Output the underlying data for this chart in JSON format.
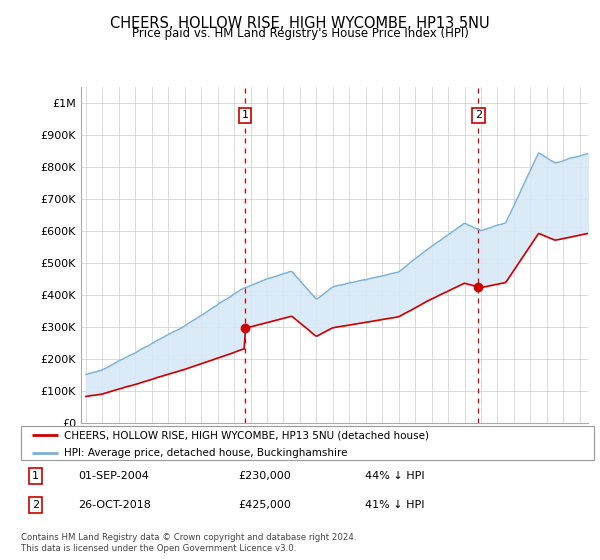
{
  "title": "CHEERS, HOLLOW RISE, HIGH WYCOMBE, HP13 5NU",
  "subtitle": "Price paid vs. HM Land Registry's House Price Index (HPI)",
  "ylim": [
    0,
    1050000
  ],
  "yticks": [
    0,
    100000,
    200000,
    300000,
    400000,
    500000,
    600000,
    700000,
    800000,
    900000,
    1000000
  ],
  "ytick_labels": [
    "£0",
    "£100K",
    "£200K",
    "£300K",
    "£400K",
    "£500K",
    "£600K",
    "£700K",
    "£800K",
    "£900K",
    "£1M"
  ],
  "hpi_color": "#7bafd4",
  "hpi_fill_color": "#d6e8f5",
  "price_color": "#cc0000",
  "dashed_color": "#cc0000",
  "marker1_x": 2004.67,
  "marker2_x": 2018.83,
  "marker1_price": 230000,
  "marker2_price": 425000,
  "marker1_label": "01-SEP-2004",
  "marker2_label": "26-OCT-2018",
  "marker1_pct": "44% ↓ HPI",
  "marker2_pct": "41% ↓ HPI",
  "legend_property_label": "CHEERS, HOLLOW RISE, HIGH WYCOMBE, HP13 5NU (detached house)",
  "legend_hpi_label": "HPI: Average price, detached house, Buckinghamshire",
  "footnote": "Contains HM Land Registry data © Crown copyright and database right 2024.\nThis data is licensed under the Open Government Licence v3.0.",
  "background_color": "#ffffff",
  "grid_color": "#cccccc",
  "xlim_left": 1995.0,
  "xlim_right": 2025.5
}
